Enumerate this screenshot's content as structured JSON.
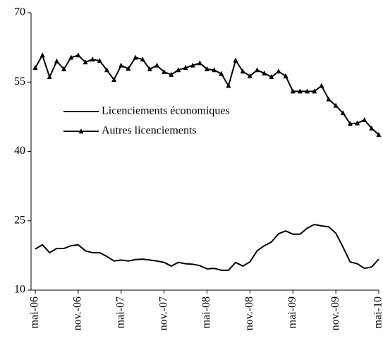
{
  "chart_data": {
    "type": "line",
    "categories": [
      "mai-06",
      null,
      null,
      null,
      null,
      null,
      "nov.-06",
      null,
      null,
      null,
      null,
      null,
      "mai-07",
      null,
      null,
      null,
      null,
      null,
      "nov.-07",
      null,
      null,
      null,
      null,
      null,
      "mai-08",
      null,
      null,
      null,
      null,
      null,
      "nov.-08",
      null,
      null,
      null,
      null,
      null,
      "mai-09",
      null,
      null,
      null,
      null,
      null,
      "nov.-09",
      null,
      null,
      null,
      null,
      null,
      "mai-10"
    ],
    "series": [
      {
        "name": "Licenciements économiques",
        "color": "#000000",
        "marker": null,
        "values": [
          18.9,
          19.8,
          18.1,
          19.0,
          19.0,
          19.6,
          19.8,
          18.5,
          18.1,
          18.1,
          17.3,
          16.3,
          16.5,
          16.3,
          16.6,
          16.7,
          16.5,
          16.3,
          16.0,
          15.2,
          16.0,
          15.7,
          15.6,
          15.3,
          14.6,
          14.7,
          14.3,
          14.3,
          16.0,
          15.2,
          16.1,
          18.5,
          19.6,
          20.4,
          22.2,
          22.8,
          22.1,
          22.1,
          23.4,
          24.2,
          23.9,
          23.7,
          22.3,
          19.3,
          16.1,
          15.7,
          14.7,
          15.0,
          16.7
        ]
      },
      {
        "name": "Autres licenciements",
        "color": "#000000",
        "marker": "triangle",
        "values": [
          58.1,
          60.8,
          56.1,
          59.5,
          57.8,
          60.3,
          60.8,
          59.3,
          59.9,
          59.6,
          57.6,
          55.5,
          58.6,
          57.9,
          60.3,
          59.9,
          57.8,
          58.6,
          57.2,
          56.6,
          57.6,
          58.1,
          58.6,
          59.1,
          57.8,
          57.6,
          56.8,
          54.2,
          59.7,
          57.3,
          56.3,
          57.6,
          56.9,
          56.1,
          57.3,
          56.3,
          53.0,
          53.0,
          53.0,
          53.0,
          54.2,
          51.3,
          49.9,
          48.3,
          46.0,
          46.1,
          46.8,
          45.0,
          43.6
        ]
      }
    ],
    "ylim": [
      10,
      70
    ],
    "yticks": [
      10,
      25,
      40,
      55,
      70
    ],
    "grid": false,
    "legend": "top-left"
  }
}
